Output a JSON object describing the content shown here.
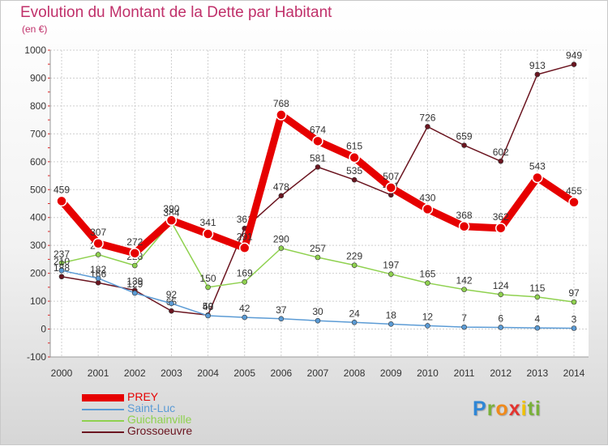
{
  "title": "Evolution du Montant de la Dette par Habitant",
  "unit": "(en €)",
  "logo": {
    "letters": [
      "P",
      "r",
      "o",
      "x",
      "i",
      "t",
      "i"
    ],
    "colors": [
      "#2e86d6",
      "#7ab13a",
      "#f08a1c",
      "#e3342f",
      "#f2c200",
      "#7ab13a",
      "#7ab13a"
    ]
  },
  "chart_data": {
    "type": "line",
    "title": "Evolution du Montant de la Dette par Habitant",
    "ylabel": "(en €)",
    "xlabel": "",
    "ylim": [
      -100,
      1000
    ],
    "yticks": [
      -100,
      0,
      100,
      200,
      300,
      400,
      500,
      600,
      700,
      800,
      900,
      1000
    ],
    "x": [
      "2000",
      "2001",
      "2002",
      "2003",
      "2004",
      "2005",
      "2006",
      "2007",
      "2008",
      "2009",
      "2010",
      "2011",
      "2012",
      "2013",
      "2014"
    ],
    "grid": true,
    "legend_position": "bottom-left",
    "series": [
      {
        "name": "Grossoeuvre",
        "color": "#6b1520",
        "values": [
          188,
          166,
          139,
          65,
          50,
          361,
          478,
          581,
          535,
          481,
          726,
          659,
          602,
          913,
          949
        ]
      },
      {
        "name": "Guichainville",
        "color": "#8fd14f",
        "values": [
          237,
          267,
          228,
          384,
          150,
          169,
          290,
          257,
          229,
          197,
          165,
          142,
          124,
          115,
          97
        ]
      },
      {
        "name": "Saint-Luc",
        "color": "#5b9bd5",
        "values": [
          210,
          182,
          129,
          92,
          48,
          42,
          37,
          30,
          24,
          18,
          12,
          7,
          6,
          4,
          3
        ]
      },
      {
        "name": "PREY",
        "color": "#e60000",
        "values": [
          459,
          307,
          272,
          390,
          341,
          291,
          768,
          674,
          615,
          507,
          430,
          368,
          362,
          543,
          455
        ]
      }
    ],
    "legend": [
      {
        "name": "PREY",
        "color": "#e60000"
      },
      {
        "name": "Saint-Luc",
        "color": "#5b9bd5"
      },
      {
        "name": "Guichainville",
        "color": "#8fd14f"
      },
      {
        "name": "Grossoeuvre",
        "color": "#6b1520"
      }
    ]
  }
}
